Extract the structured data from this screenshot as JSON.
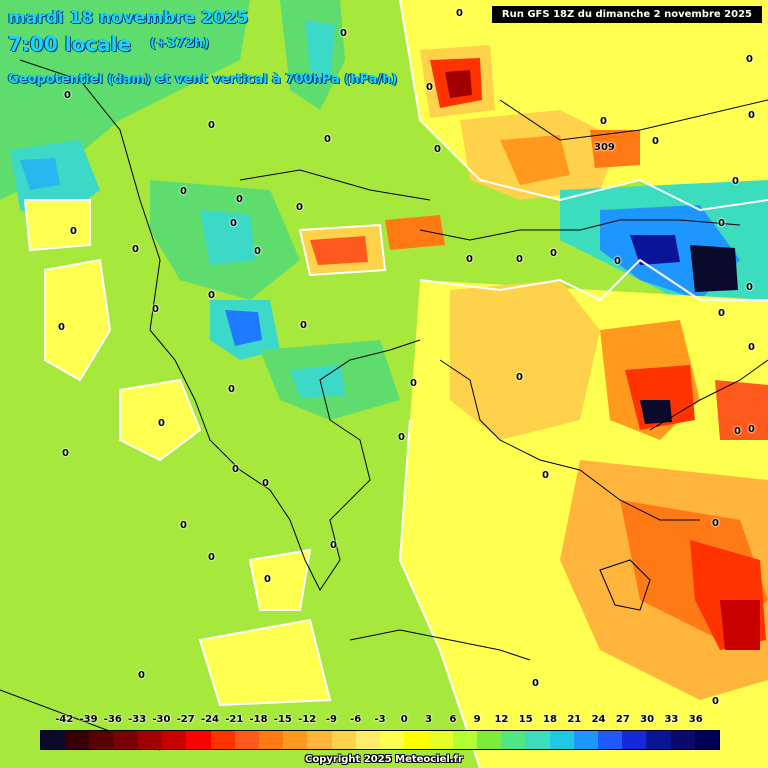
{
  "header": {
    "date": "mardi 18 novembre 2025",
    "time": "7:00 locale",
    "offset": "(+372h)",
    "parameter": "Geopotentiel (dam) et vent vertical à 700hPa (hPa/h)"
  },
  "run_info": "Run GFS 18Z du dimanche 2 novembre 2025",
  "contour_labels": [
    "0",
    "309"
  ],
  "legend": {
    "ticks": [
      "-42",
      "-39",
      "-36",
      "-33",
      "-30",
      "-27",
      "-24",
      "-21",
      "-18",
      "-15",
      "-12",
      "-9",
      "-6",
      "-3",
      "0",
      "3",
      "6",
      "9",
      "12",
      "15",
      "18",
      "21",
      "24",
      "27",
      "30",
      "33",
      "36"
    ],
    "colors": [
      "#0a0a2a",
      "#3a0000",
      "#5a0000",
      "#7a0000",
      "#a00000",
      "#c80000",
      "#ff0000",
      "#ff3300",
      "#ff5a1e",
      "#ff7a14",
      "#ff9a1e",
      "#ffb43c",
      "#ffd24b",
      "#ffeb6e",
      "#ffff50",
      "#ffff00",
      "#e6ff28",
      "#b4ff32",
      "#7deb3c",
      "#50e682",
      "#3cdcbe",
      "#1ec8e6",
      "#1e96ff",
      "#1e5aff",
      "#1428dc",
      "#0a1496",
      "#0a0a6e",
      "#00005a"
    ]
  },
  "copyright": "Copyright 2025 Meteociel.fr"
}
